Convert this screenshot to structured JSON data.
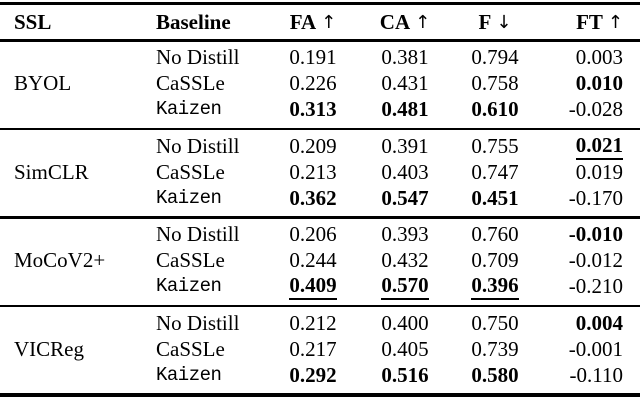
{
  "colors": {
    "text": "#000000",
    "background": "#ffffff",
    "rule": "#000000"
  },
  "table": {
    "headers": [
      {
        "label": "SSL",
        "arrow": ""
      },
      {
        "label": "Baseline",
        "arrow": ""
      },
      {
        "label": "FA",
        "arrow": "↑"
      },
      {
        "label": "CA",
        "arrow": "↑"
      },
      {
        "label": "F",
        "arrow": "↓"
      },
      {
        "label": "FT",
        "arrow": "↑"
      }
    ],
    "groups": [
      {
        "ssl": "BYOL",
        "rows": [
          {
            "baseline": "No Distill",
            "baseline_format": "serif",
            "values": [
              "0.191",
              "0.381",
              "0.794",
              "0.003"
            ],
            "formats": [
              "normal",
              "normal",
              "normal",
              "normal"
            ]
          },
          {
            "baseline": "CaSSLe",
            "baseline_format": "serif",
            "values": [
              "0.226",
              "0.431",
              "0.758",
              "0.010"
            ],
            "formats": [
              "normal",
              "normal",
              "normal",
              "bold"
            ]
          },
          {
            "baseline": "Kaizen",
            "baseline_format": "mono",
            "values": [
              "0.313",
              "0.481",
              "0.610",
              "-0.028"
            ],
            "formats": [
              "bold",
              "bold",
              "bold",
              "normal"
            ]
          }
        ]
      },
      {
        "ssl": "SimCLR",
        "rows": [
          {
            "baseline": "No Distill",
            "baseline_format": "serif",
            "values": [
              "0.209",
              "0.391",
              "0.755",
              "0.021"
            ],
            "formats": [
              "normal",
              "normal",
              "normal",
              "bold underline"
            ]
          },
          {
            "baseline": "CaSSLe",
            "baseline_format": "serif",
            "values": [
              "0.213",
              "0.403",
              "0.747",
              "0.019"
            ],
            "formats": [
              "normal",
              "normal",
              "normal",
              "normal"
            ]
          },
          {
            "baseline": "Kaizen",
            "baseline_format": "mono",
            "values": [
              "0.362",
              "0.547",
              "0.451",
              "-0.170"
            ],
            "formats": [
              "bold",
              "bold",
              "bold",
              "normal"
            ]
          }
        ]
      },
      {
        "ssl": "MoCoV2+",
        "rows": [
          {
            "baseline": "No Distill",
            "baseline_format": "serif",
            "values": [
              "0.206",
              "0.393",
              "0.760",
              "-0.010"
            ],
            "formats": [
              "normal",
              "normal",
              "normal",
              "bold"
            ]
          },
          {
            "baseline": "CaSSLe",
            "baseline_format": "serif",
            "values": [
              "0.244",
              "0.432",
              "0.709",
              "-0.012"
            ],
            "formats": [
              "normal",
              "normal",
              "normal",
              "normal"
            ]
          },
          {
            "baseline": "Kaizen",
            "baseline_format": "mono",
            "values": [
              "0.409",
              "0.570",
              "0.396",
              "-0.210"
            ],
            "formats": [
              "bold underline",
              "bold underline",
              "bold underline",
              "normal"
            ]
          }
        ]
      },
      {
        "ssl": "VICReg",
        "rows": [
          {
            "baseline": "No Distill",
            "baseline_format": "serif",
            "values": [
              "0.212",
              "0.400",
              "0.750",
              "0.004"
            ],
            "formats": [
              "normal",
              "normal",
              "normal",
              "bold"
            ]
          },
          {
            "baseline": "CaSSLe",
            "baseline_format": "serif",
            "values": [
              "0.217",
              "0.405",
              "0.739",
              "-0.001"
            ],
            "formats": [
              "normal",
              "normal",
              "normal",
              "normal"
            ]
          },
          {
            "baseline": "Kaizen",
            "baseline_format": "mono",
            "values": [
              "0.292",
              "0.516",
              "0.580",
              "-0.110"
            ],
            "formats": [
              "bold",
              "bold",
              "bold",
              "normal"
            ]
          }
        ]
      }
    ]
  }
}
